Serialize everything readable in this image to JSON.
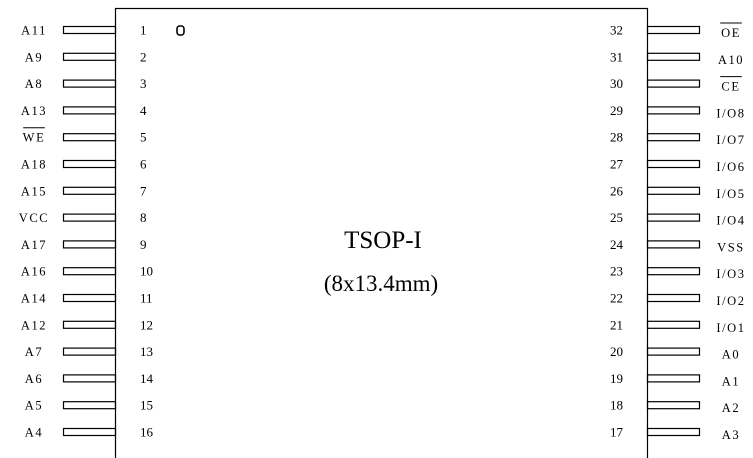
{
  "package": {
    "name": "TSOP-I",
    "dimensions": "(8x13.4mm)"
  },
  "left_pins": [
    {
      "number": "1",
      "name": "A11",
      "active_low": false
    },
    {
      "number": "2",
      "name": "A9",
      "active_low": false
    },
    {
      "number": "3",
      "name": "A8",
      "active_low": false
    },
    {
      "number": "4",
      "name": "A13",
      "active_low": false
    },
    {
      "number": "5",
      "name": "WE",
      "active_low": true
    },
    {
      "number": "6",
      "name": "A18",
      "active_low": false
    },
    {
      "number": "7",
      "name": "A15",
      "active_low": false
    },
    {
      "number": "8",
      "name": "VCC",
      "active_low": false
    },
    {
      "number": "9",
      "name": "A17",
      "active_low": false
    },
    {
      "number": "10",
      "name": "A16",
      "active_low": false
    },
    {
      "number": "11",
      "name": "A14",
      "active_low": false
    },
    {
      "number": "12",
      "name": "A12",
      "active_low": false
    },
    {
      "number": "13",
      "name": "A7",
      "active_low": false
    },
    {
      "number": "14",
      "name": "A6",
      "active_low": false
    },
    {
      "number": "15",
      "name": "A5",
      "active_low": false
    },
    {
      "number": "16",
      "name": "A4",
      "active_low": false
    }
  ],
  "right_pins": [
    {
      "number": "32",
      "name": "OE",
      "active_low": true
    },
    {
      "number": "31",
      "name": "A10",
      "active_low": false
    },
    {
      "number": "30",
      "name": "CE",
      "active_low": true
    },
    {
      "number": "29",
      "name": "I/O8",
      "active_low": false
    },
    {
      "number": "28",
      "name": "I/O7",
      "active_low": false
    },
    {
      "number": "27",
      "name": "I/O6",
      "active_low": false
    },
    {
      "number": "26",
      "name": "I/O5",
      "active_low": false
    },
    {
      "number": "25",
      "name": "I/O4",
      "active_low": false
    },
    {
      "number": "24",
      "name": "VSS",
      "active_low": false
    },
    {
      "number": "23",
      "name": "I/O3",
      "active_low": false
    },
    {
      "number": "22",
      "name": "I/O2",
      "active_low": false
    },
    {
      "number": "21",
      "name": "I/O1",
      "active_low": false
    },
    {
      "number": "20",
      "name": "A0",
      "active_low": false
    },
    {
      "number": "19",
      "name": "A1",
      "active_low": false
    },
    {
      "number": "18",
      "name": "A2",
      "active_low": false
    },
    {
      "number": "17",
      "name": "A3",
      "active_low": false
    }
  ],
  "colors": {
    "line": "#000000",
    "background": "#ffffff"
  }
}
